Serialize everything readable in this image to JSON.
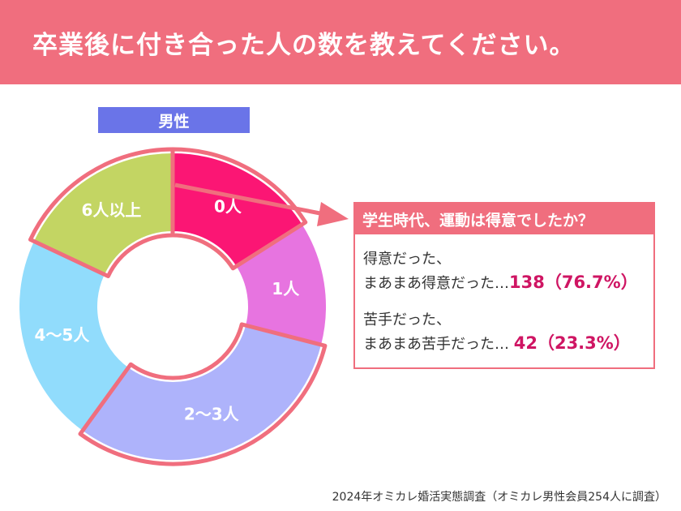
{
  "header": {
    "title": "卒業後に付き合った人の数を教えてください。"
  },
  "gender_label": "男性",
  "chart_data": {
    "type": "pie",
    "title": "卒業後に付き合った人の数を教えてください。",
    "subtitle": "男性",
    "categories": [
      "0人",
      "1人",
      "2〜3人",
      "4〜5人",
      "6人以上"
    ],
    "values": [
      16,
      13,
      31,
      22,
      18
    ],
    "unit": "%",
    "highlighted": [
      "0人",
      "6人以上",
      "2〜3人"
    ],
    "colors": [
      "#fb1674",
      "#e774e0",
      "#aeb3fb",
      "#91dcfc",
      "#c3d563"
    ],
    "donut": true
  },
  "callout": {
    "title": "学生時代、運動は得意でしたか？",
    "items": [
      {
        "line1": "得意だった、",
        "line2": "まあまあ得意だった…",
        "value": "138（76.7%）"
      },
      {
        "line1": "苦手だった、",
        "line2": "まあまあ苦手だった… ",
        "value": "42（23.3%）"
      }
    ],
    "accent": "#f06e7e",
    "value_color": "#cf1563"
  },
  "footnote": "2024年オミカレ婚活実態調査（オミカレ男性会員254人に調査）"
}
